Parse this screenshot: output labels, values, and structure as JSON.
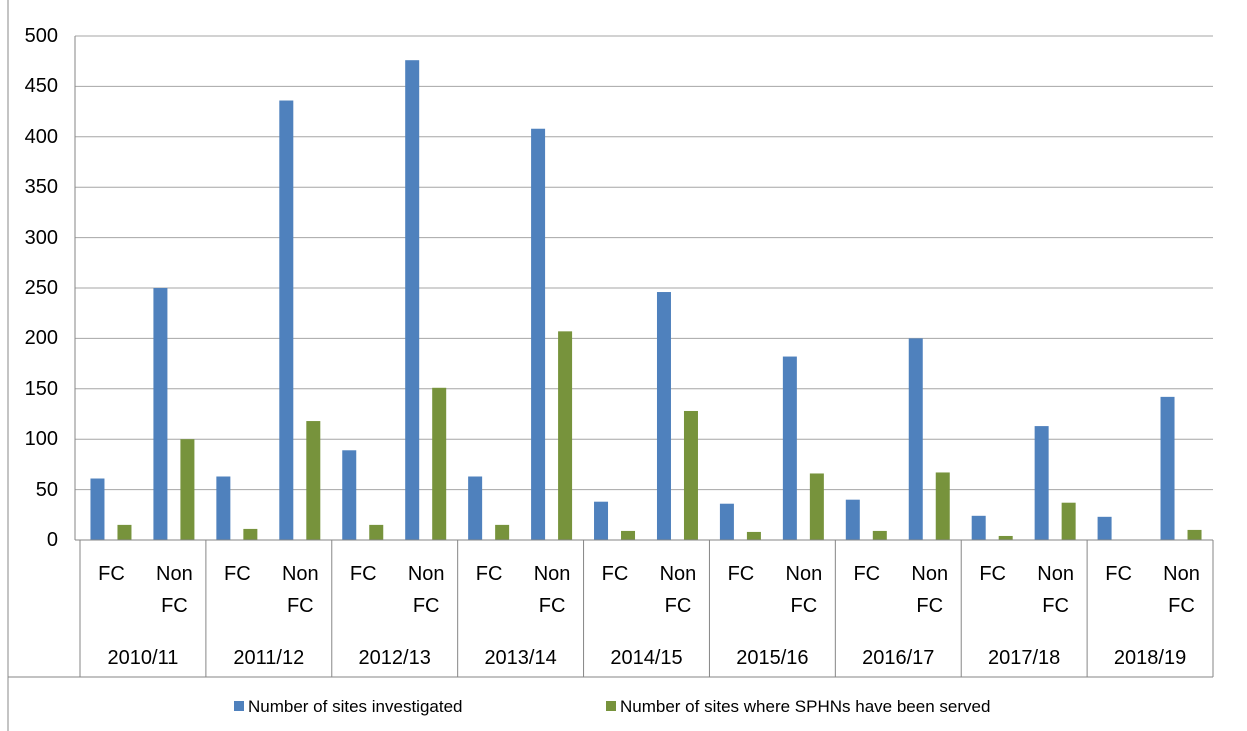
{
  "chart_data": {
    "type": "bar",
    "categories": [
      "FC",
      "Non FC",
      "FC",
      "Non FC",
      "FC",
      "Non FC",
      "FC",
      "Non FC",
      "FC",
      "Non FC",
      "FC",
      "Non FC",
      "FC",
      "Non FC",
      "FC",
      "Non FC",
      "FC",
      "Non FC"
    ],
    "category_groups": [
      "2010/11",
      "2011/12",
      "2012/13",
      "2013/14",
      "2014/15",
      "2015/16",
      "2016/17",
      "2017/18",
      "2018/19"
    ],
    "series": [
      {
        "name": "Number of sites investigated",
        "color": "#4f81bd",
        "values": [
          61,
          250,
          63,
          436,
          89,
          476,
          63,
          408,
          38,
          246,
          36,
          182,
          40,
          200,
          24,
          113,
          23,
          142
        ]
      },
      {
        "name": "Number of sites where SPHNs have been served",
        "color": "#77933c",
        "values": [
          15,
          100,
          11,
          118,
          15,
          151,
          15,
          207,
          9,
          128,
          8,
          66,
          9,
          67,
          4,
          37,
          0,
          10
        ]
      }
    ],
    "ylim": [
      0,
      500
    ],
    "yticks": [
      0,
      50,
      100,
      150,
      200,
      250,
      300,
      350,
      400,
      450,
      500
    ],
    "grid": true,
    "legend": "bottom"
  }
}
